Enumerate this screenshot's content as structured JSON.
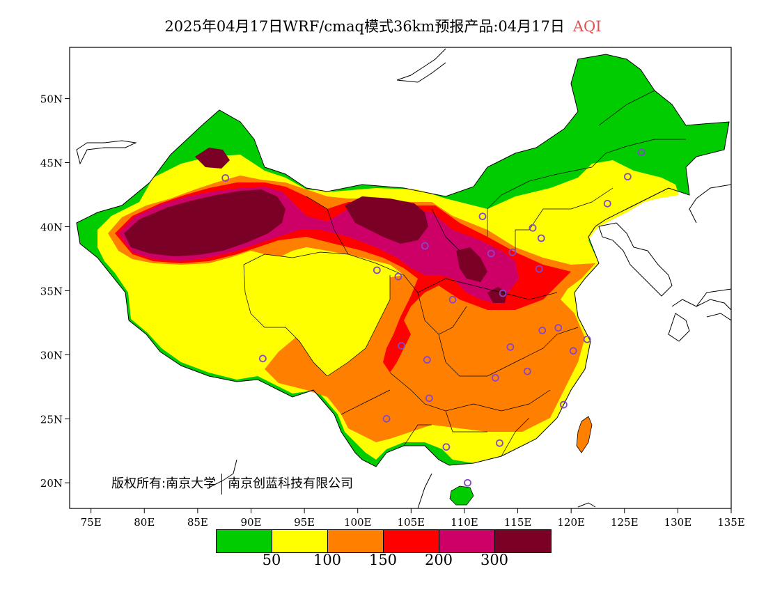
{
  "title": {
    "main": "2025年04月17日WRF/cmaq模式36km预报产品:04月17日",
    "variable": "AQI",
    "variable_color": "#e05050"
  },
  "axes": {
    "x_ticks": [
      "75E",
      "80E",
      "85E",
      "90E",
      "95E",
      "100E",
      "105E",
      "110E",
      "115E",
      "120E",
      "125E",
      "130E",
      "135E"
    ],
    "y_ticks": [
      "50N",
      "45N",
      "40N",
      "35N",
      "30N",
      "25N",
      "20N"
    ],
    "lon_range": [
      73,
      135
    ],
    "lat_range": [
      18,
      54
    ]
  },
  "copyright": {
    "prefix": "版权所有:",
    "org1": "南京大学",
    "org2": "南京创蓝科技有限公司"
  },
  "legend": {
    "colors": [
      "#00cc00",
      "#ffff00",
      "#ff8000",
      "#ff0000",
      "#cc0066",
      "#7a0026"
    ],
    "labels": [
      "50",
      "100",
      "150",
      "200",
      "300"
    ]
  },
  "colors": {
    "good": "#00cc00",
    "moderate": "#ffff00",
    "unhealthy_sensitive": "#ff8000",
    "unhealthy": "#ff0000",
    "very_unhealthy": "#cc0066",
    "hazardous": "#7a0026",
    "station_marker": "#8844cc"
  },
  "stations": [
    [
      87.6,
      43.8
    ],
    [
      91.1,
      29.7
    ],
    [
      101.8,
      36.6
    ],
    [
      103.8,
      36.1
    ],
    [
      106.3,
      38.5
    ],
    [
      111.7,
      40.8
    ],
    [
      112.5,
      37.9
    ],
    [
      114.5,
      38.0
    ],
    [
      116.4,
      39.9
    ],
    [
      117.2,
      39.1
    ],
    [
      117.0,
      36.7
    ],
    [
      113.6,
      34.8
    ],
    [
      108.9,
      34.3
    ],
    [
      104.1,
      30.7
    ],
    [
      106.5,
      29.6
    ],
    [
      106.7,
      26.6
    ],
    [
      102.7,
      25.0
    ],
    [
      108.3,
      22.8
    ],
    [
      113.3,
      23.1
    ],
    [
      110.3,
      20.0
    ],
    [
      112.9,
      28.2
    ],
    [
      115.9,
      28.7
    ],
    [
      114.3,
      30.6
    ],
    [
      117.3,
      31.9
    ],
    [
      118.8,
      32.1
    ],
    [
      120.2,
      30.3
    ],
    [
      121.5,
      31.2
    ],
    [
      119.3,
      26.1
    ],
    [
      123.4,
      41.8
    ],
    [
      125.3,
      43.9
    ],
    [
      126.6,
      45.8
    ]
  ]
}
